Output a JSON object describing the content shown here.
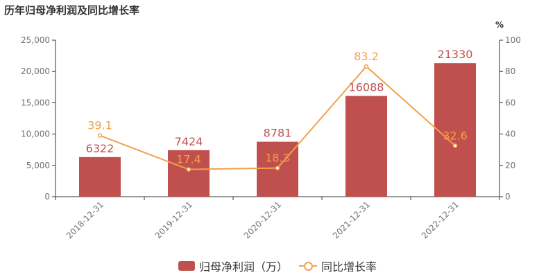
{
  "chart_data": {
    "type": "bar",
    "title": "历年归母净利润及同比增长率",
    "categories": [
      "2018-12-31",
      "2019-12-31",
      "2020-12-31",
      "2021-12-31",
      "2022-12-31"
    ],
    "series": [
      {
        "name": "归母净利润（万）",
        "type": "bar",
        "axis": "left",
        "color": "#c0504d",
        "values": [
          6322,
          7424,
          8781,
          16088,
          21330
        ],
        "labels": [
          "6322",
          "7424",
          "8781",
          "16088",
          "21330"
        ]
      },
      {
        "name": "同比增长率",
        "type": "line",
        "axis": "right",
        "color": "#f3a04c",
        "values": [
          39.1,
          17.4,
          18.3,
          83.2,
          32.6
        ],
        "labels": [
          "39.1",
          "17.4",
          "18.3",
          "83.2",
          "32.6"
        ]
      }
    ],
    "y_left": {
      "min": 0,
      "max": 25000,
      "ticks": [
        0,
        5000,
        10000,
        15000,
        20000,
        25000
      ],
      "tick_labels": [
        "0",
        "5,000",
        "10,000",
        "15,000",
        "20,000",
        "25,000"
      ]
    },
    "y_right": {
      "min": 0,
      "max": 100,
      "unit": "%",
      "ticks": [
        0,
        20,
        40,
        60,
        80,
        100
      ],
      "tick_labels": [
        "0",
        "20",
        "40",
        "60",
        "80",
        "100"
      ]
    },
    "grid": false,
    "legend_position": "bottom"
  }
}
